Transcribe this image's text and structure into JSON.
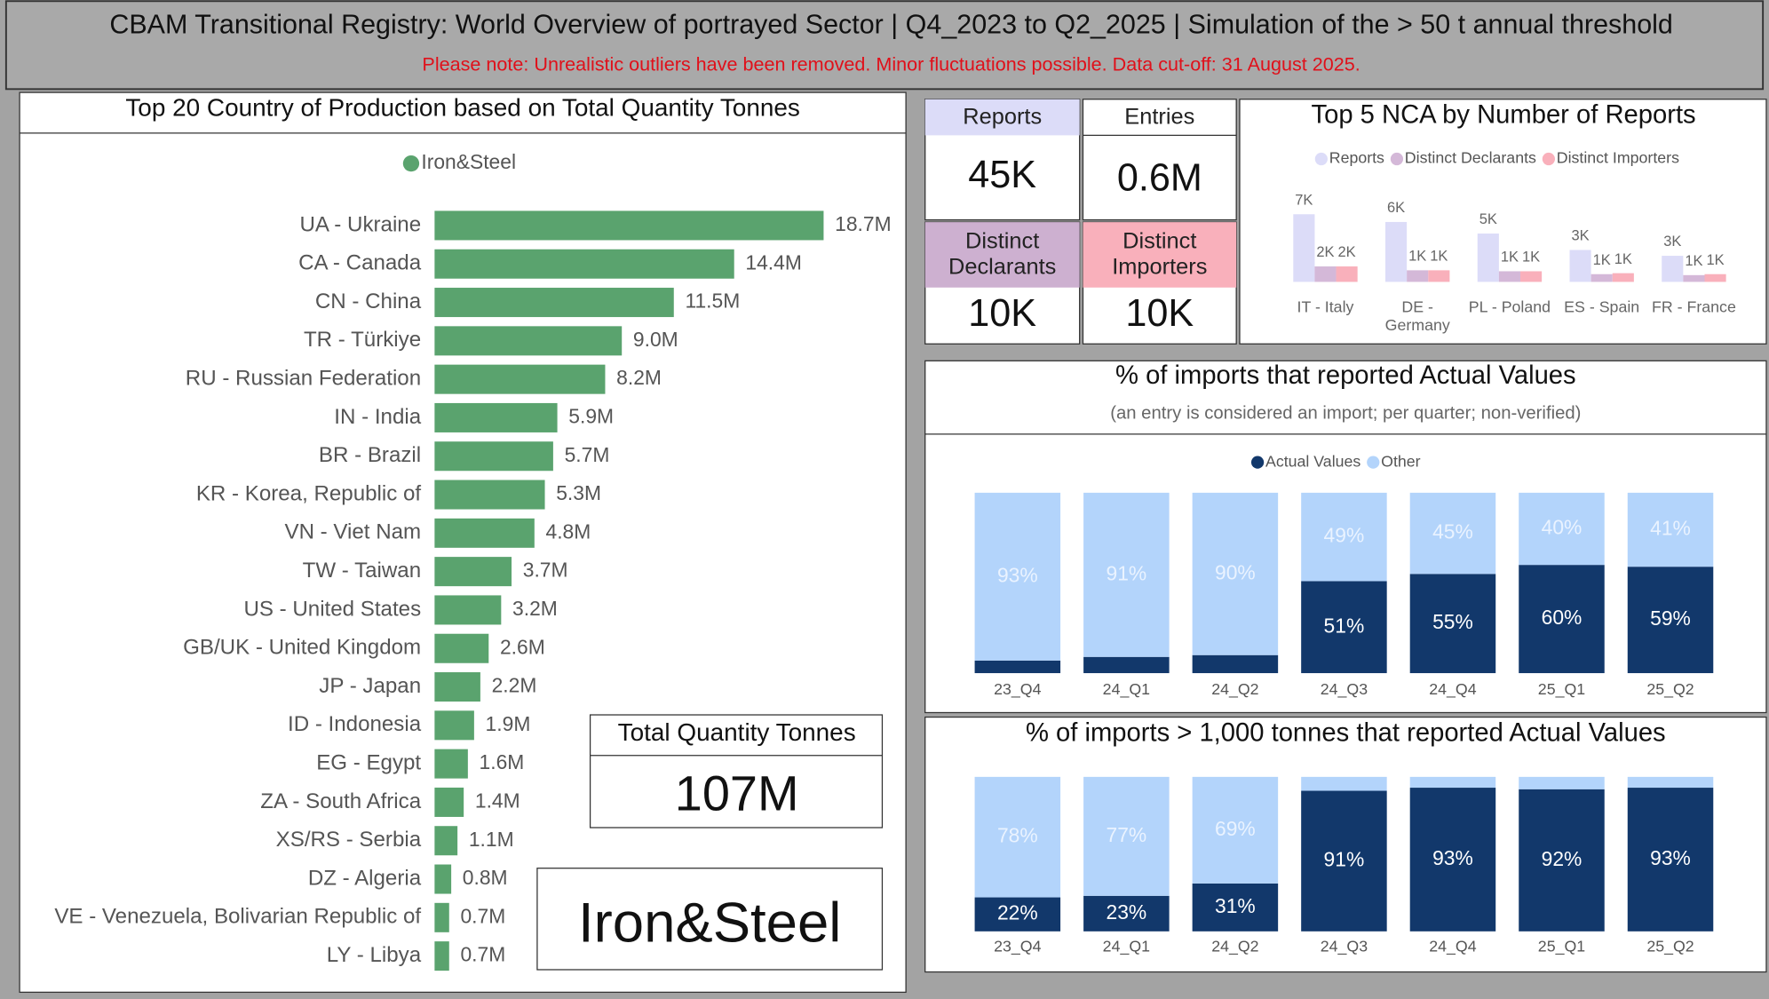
{
  "header": {
    "title": "CBAM Transitional Registry: World Overview of portrayed Sector | Q4_2023 to Q2_2025 | Simulation of the > 50 t annual threshold",
    "subtitle": "Please note: Unrealistic outliers have been removed. Minor fluctuations possible. Data cut-off: 31 August 2025."
  },
  "cards": [
    {
      "label": "Reports",
      "value": "45K"
    },
    {
      "label": "Entries",
      "value": "0.6M"
    },
    {
      "label": "Distinct Declarants",
      "value": "10K"
    },
    {
      "label": "Distinct Importers",
      "value": "10K"
    },
    {
      "label": "Total Quantity Tonnes",
      "value": "107M"
    }
  ],
  "sector": "Iron&Steel",
  "chart_data": [
    {
      "type": "hbar",
      "title": "Top 20 Country of Production based on Total Quantity Tonnes",
      "categories": [
        "UA - Ukraine",
        "CA - Canada",
        "CN - China",
        "TR - Türkiye",
        "RU - Russian Federation",
        "IN - India",
        "BR - Brazil",
        "KR - Korea, Republic of",
        "VN - Viet Nam",
        "TW - Taiwan",
        "US - United States",
        "GB/UK - United Kingdom",
        "JP - Japan",
        "ID - Indonesia",
        "EG - Egypt",
        "ZA - South Africa",
        "XS/RS - Serbia",
        "DZ - Algeria",
        "VE - Venezuela, Bolivarian Republic of",
        "LY - Libya"
      ],
      "series": [
        {
          "name": "Iron&Steel",
          "color": "#5aa36e",
          "values": [
            18.7,
            14.4,
            11.5,
            9.0,
            8.2,
            5.9,
            5.7,
            5.3,
            4.8,
            3.7,
            3.2,
            2.6,
            2.2,
            1.9,
            1.6,
            1.4,
            1.1,
            0.8,
            0.7,
            0.7
          ],
          "value_labels": [
            "18.7M",
            "14.4M",
            "11.5M",
            "9.0M",
            "8.2M",
            "5.9M",
            "5.7M",
            "5.3M",
            "4.8M",
            "3.7M",
            "3.2M",
            "2.6M",
            "2.2M",
            "1.9M",
            "1.6M",
            "1.4M",
            "1.1M",
            "0.8M",
            "0.7M",
            "0.7M"
          ]
        }
      ]
    },
    {
      "type": "bar",
      "title": "Top 5 NCA by Number of Reports",
      "categories": [
        "IT - Italy",
        "DE - Germany",
        "PL - Poland",
        "ES - Spain",
        "FR - France"
      ],
      "series": [
        {
          "name": "Reports",
          "color": "#dcdcf8",
          "values": [
            7000,
            6200,
            5000,
            3300,
            2700
          ],
          "value_labels": [
            "7K",
            "6K",
            "5K",
            "3K",
            "3K"
          ]
        },
        {
          "name": "Distinct Declarants",
          "color": "#d4b8d8",
          "values": [
            1600,
            1200,
            1100,
            800,
            700
          ],
          "value_labels": [
            "2K",
            "1K",
            "1K",
            "1K",
            "1K"
          ]
        },
        {
          "name": "Distinct Importers",
          "color": "#f9b0bb",
          "values": [
            1600,
            1200,
            1100,
            900,
            800
          ],
          "value_labels": [
            "2K",
            "1K",
            "1K",
            "1K",
            "1K"
          ]
        }
      ]
    },
    {
      "type": "stacked",
      "title": "% of imports that reported Actual Values",
      "subtitle": "(an entry is considered an import; per quarter; non-verified)",
      "categories": [
        "23_Q4",
        "24_Q1",
        "24_Q2",
        "24_Q3",
        "24_Q4",
        "25_Q1",
        "25_Q2"
      ],
      "ylim": [
        0,
        100
      ],
      "legend": true,
      "series": [
        {
          "name": "Actual Values",
          "color": "#12386b",
          "values": [
            7,
            9,
            10,
            51,
            55,
            60,
            59
          ],
          "value_labels": [
            null,
            null,
            null,
            "51%",
            "55%",
            "60%",
            "59%"
          ]
        },
        {
          "name": "Other",
          "color": "#b3d4fb",
          "values": [
            93,
            91,
            90,
            49,
            45,
            40,
            41
          ],
          "value_labels": [
            "93%",
            "91%",
            "90%",
            "49%",
            "45%",
            "40%",
            "41%"
          ]
        }
      ]
    },
    {
      "type": "stacked",
      "title": "% of imports > 1,000 tonnes that reported Actual Values",
      "categories": [
        "23_Q4",
        "24_Q1",
        "24_Q2",
        "24_Q3",
        "24_Q4",
        "25_Q1",
        "25_Q2"
      ],
      "ylim": [
        0,
        100
      ],
      "legend": false,
      "series": [
        {
          "color": "#12386b",
          "values": [
            22,
            23,
            31,
            91,
            93,
            92,
            93
          ],
          "value_labels": [
            "22%",
            "23%",
            "31%",
            "91%",
            "93%",
            "92%",
            "93%"
          ]
        },
        {
          "color": "#b3d4fb",
          "values": [
            78,
            77,
            69,
            9,
            7,
            8,
            7
          ],
          "value_labels": [
            "78%",
            "77%",
            "69%",
            null,
            null,
            null,
            null
          ]
        }
      ]
    }
  ]
}
